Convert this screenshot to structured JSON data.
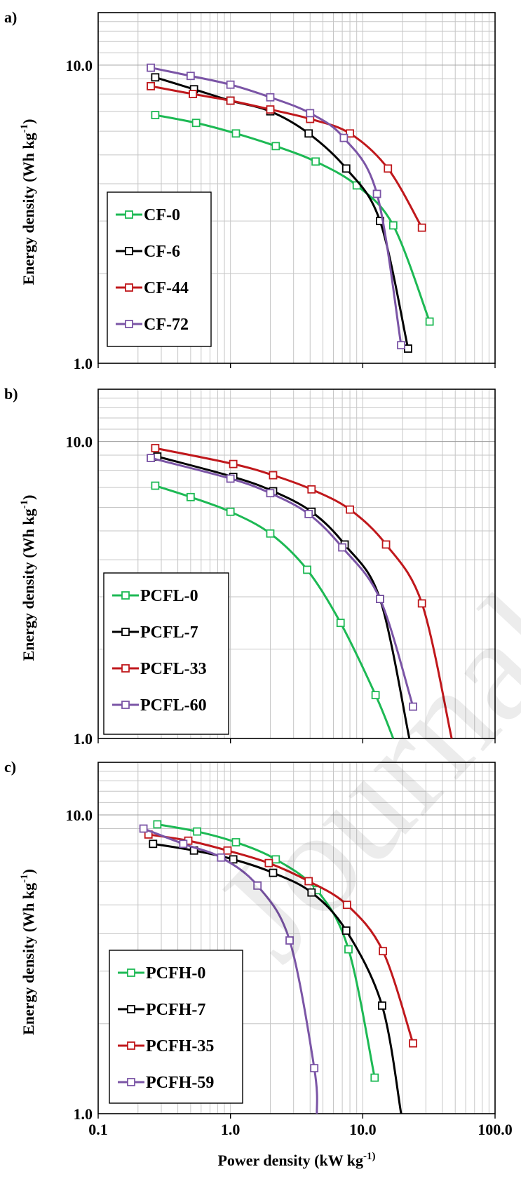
{
  "watermark": "Journal Pre-proof",
  "chart_data": [
    {
      "type": "line",
      "panel_label": "a)",
      "ylabel": "Energy density (Wh kg",
      "ylabel_sup": "-1",
      "ylabel_end": ")",
      "xscale": "log",
      "yscale": "log",
      "xlim": [
        0.1,
        100
      ],
      "ylim": [
        1,
        15
      ],
      "grid": true,
      "legend_position": "bottom-left",
      "series": [
        {
          "name": "CF-0",
          "color": "#1db954",
          "x": [
            0.27,
            0.55,
            1.1,
            2.2,
            4.4,
            9.0,
            17.0,
            32.0
          ],
          "y": [
            6.8,
            6.4,
            5.9,
            5.35,
            4.75,
            3.95,
            2.9,
            1.38
          ]
        },
        {
          "name": "CF-6",
          "color": "#000000",
          "x": [
            0.27,
            0.53,
            1.0,
            2.0,
            3.9,
            7.5,
            13.5,
            22.0
          ],
          "y": [
            9.1,
            8.3,
            7.6,
            7.0,
            5.9,
            4.5,
            3.0,
            1.12
          ]
        },
        {
          "name": "CF-44",
          "color": "#c0181c",
          "x": [
            0.25,
            0.52,
            1.0,
            2.0,
            4.0,
            8.0,
            15.5,
            28.0
          ],
          "y": [
            8.5,
            8.0,
            7.6,
            7.1,
            6.6,
            5.9,
            4.5,
            2.85
          ]
        },
        {
          "name": "CF-72",
          "color": "#7b55a6",
          "x": [
            0.25,
            0.5,
            1.0,
            2.0,
            4.0,
            7.2,
            12.8,
            19.5
          ],
          "y": [
            9.8,
            9.2,
            8.6,
            7.8,
            6.9,
            5.7,
            3.7,
            1.15
          ]
        }
      ]
    },
    {
      "type": "line",
      "panel_label": "b)",
      "ylabel": "Energy density (Wh kg",
      "ylabel_sup": "-1",
      "ylabel_end": ")",
      "xscale": "log",
      "yscale": "log",
      "xlim": [
        0.1,
        100
      ],
      "ylim": [
        1,
        15
      ],
      "grid": true,
      "legend_position": "bottom-left",
      "series": [
        {
          "name": "PCFL-0",
          "color": "#1db954",
          "x": [
            0.27,
            0.5,
            1.0,
            2.0,
            3.8,
            6.8,
            12.5,
            17.0
          ],
          "y": [
            7.1,
            6.5,
            5.8,
            4.9,
            3.7,
            2.45,
            1.4,
            1.0
          ]
        },
        {
          "name": "PCFL-7",
          "color": "#000000",
          "x": [
            0.28,
            1.05,
            2.1,
            4.1,
            7.3,
            13.5,
            22.5
          ],
          "y": [
            8.9,
            7.6,
            6.8,
            5.8,
            4.5,
            2.95,
            1.0
          ]
        },
        {
          "name": "PCFL-33",
          "color": "#c0181c",
          "x": [
            0.27,
            1.05,
            2.1,
            4.1,
            8.0,
            15.0,
            28.0,
            47.0
          ],
          "y": [
            9.5,
            8.4,
            7.7,
            6.9,
            5.9,
            4.5,
            2.85,
            1.0
          ]
        },
        {
          "name": "PCFL-60",
          "color": "#7b55a6",
          "x": [
            0.25,
            1.0,
            2.0,
            3.9,
            7.0,
            13.5,
            24.0
          ],
          "y": [
            8.8,
            7.5,
            6.7,
            5.7,
            4.4,
            2.95,
            1.28
          ]
        }
      ]
    },
    {
      "type": "line",
      "panel_label": "c)",
      "ylabel": "Energy density (Wh kg",
      "ylabel_sup": "-1",
      "ylabel_end": ")",
      "xlabel": "Power density  (kW kg",
      "xlabel_sup": "-1)",
      "xscale": "log",
      "yscale": "log",
      "xlim": [
        0.1,
        100
      ],
      "ylim": [
        1,
        15
      ],
      "x_ticks": [
        "0.1",
        "1.0",
        "10.0",
        "100.0"
      ],
      "grid": true,
      "legend_position": "bottom-left",
      "series": [
        {
          "name": "PCFH-0",
          "color": "#1db954",
          "x": [
            0.28,
            0.56,
            1.1,
            2.2,
            4.5,
            7.8,
            12.3
          ],
          "y": [
            9.3,
            8.8,
            8.1,
            7.1,
            5.6,
            3.55,
            1.32
          ]
        },
        {
          "name": "PCFH-7",
          "color": "#000000",
          "x": [
            0.26,
            0.53,
            1.05,
            2.1,
            4.1,
            7.5,
            14.0,
            19.5
          ],
          "y": [
            8.0,
            7.6,
            7.1,
            6.4,
            5.5,
            4.1,
            2.3,
            1.0
          ]
        },
        {
          "name": "PCFH-35",
          "color": "#c0181c",
          "x": [
            0.24,
            0.48,
            0.95,
            1.95,
            3.9,
            7.6,
            14.2,
            24.0
          ],
          "y": [
            8.6,
            8.2,
            7.6,
            6.9,
            6.0,
            5.0,
            3.5,
            1.72
          ]
        },
        {
          "name": "PCFH-59",
          "color": "#7b55a6",
          "x": [
            0.22,
            0.44,
            0.85,
            1.6,
            2.8,
            4.3,
            4.5
          ],
          "y": [
            9.0,
            8.0,
            7.2,
            5.8,
            3.8,
            1.42,
            1.0
          ]
        }
      ]
    }
  ]
}
